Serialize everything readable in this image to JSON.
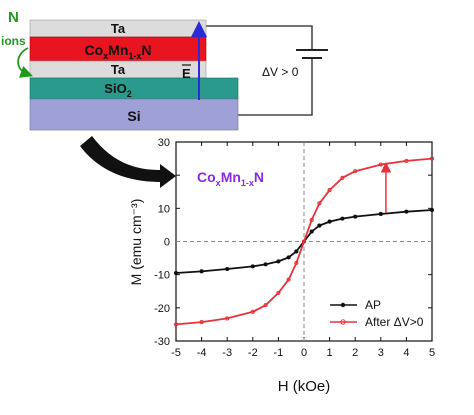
{
  "schematic": {
    "n_label": "N",
    "ions_label": "ions",
    "layer_ta_top": "Ta",
    "layer_comn_base": "Co",
    "layer_comn_sub1": "x",
    "layer_comn_mid": "Mn",
    "layer_comn_sub2": "1-x",
    "layer_comn_end": "N",
    "layer_ta_bottom": "Ta",
    "layer_sio2_base": "SiO",
    "layer_sio2_sub": "2",
    "layer_si": "Si",
    "efield_label": "E",
    "voltage_label": "ΔV > 0",
    "colors": {
      "ta": "#dcdcdc",
      "comn": "#e8141f",
      "sio2": "#2a9a8c",
      "si": "#9fa1d6",
      "n_green": "#1f9a1f",
      "efield_arrow": "#2b2bd6",
      "title_purple": "#8a2be2"
    }
  },
  "chart_data": {
    "type": "line",
    "title_base": "Co",
    "title_sub1": "x",
    "title_mid": "Mn",
    "title_sub2": "1-x",
    "title_end": "N",
    "xlabel": "H (kOe)",
    "ylabel": "M (emu cm⁻³)",
    "xlim": [
      -5,
      5
    ],
    "ylim": [
      -30,
      30
    ],
    "xticks": [
      -5,
      -4,
      -3,
      -2,
      -1,
      0,
      1,
      2,
      3,
      4,
      5
    ],
    "yticks": [
      -30,
      -20,
      -10,
      0,
      10,
      20,
      30
    ],
    "legend_position": "bottom-right",
    "series": [
      {
        "name": "AP",
        "color": "#111111",
        "x": [
          -5,
          -4,
          -3,
          -2,
          -1.5,
          -1,
          -0.6,
          -0.3,
          0,
          0.3,
          0.6,
          1,
          1.5,
          2,
          3,
          4,
          5
        ],
        "y": [
          -9.5,
          -9.0,
          -8.3,
          -7.5,
          -6.9,
          -6.0,
          -4.8,
          -3.0,
          0,
          3.0,
          4.8,
          6.0,
          6.9,
          7.5,
          8.3,
          9.0,
          9.5
        ]
      },
      {
        "name": "After ΔV>0",
        "color": "#e8323a",
        "x": [
          -5,
          -4,
          -3,
          -2,
          -1.5,
          -1,
          -0.6,
          -0.3,
          0,
          0.3,
          0.6,
          1,
          1.5,
          2,
          3,
          4,
          5
        ],
        "y": [
          -25,
          -24.3,
          -23.2,
          -21.2,
          -19.2,
          -15.5,
          -11.5,
          -6.5,
          0,
          6.5,
          11.5,
          15.5,
          19.2,
          21.2,
          23.2,
          24.3,
          25
        ]
      }
    ],
    "arrow": {
      "x": 3.2,
      "y_from": 8.6,
      "y_to": 23.6
    }
  }
}
